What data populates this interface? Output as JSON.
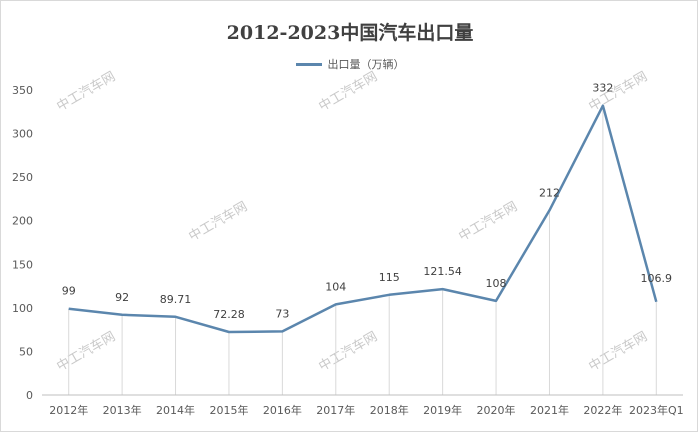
{
  "chart_data": {
    "type": "line",
    "title": "2012-2023中国汽车出口量",
    "categories": [
      "2012年",
      "2013年",
      "2014年",
      "2015年",
      "2016年",
      "2017年",
      "2018年",
      "2019年",
      "2020年",
      "2021年",
      "2022年",
      "2023年Q1"
    ],
    "series": [
      {
        "name": "出口量（万辆）",
        "values": [
          99,
          92,
          89.71,
          72.28,
          73,
          104,
          115,
          121.54,
          108,
          212,
          332,
          106.9
        ],
        "labels": [
          "99",
          "92",
          "89.71",
          "72.28",
          "73",
          "104",
          "115",
          "121.54",
          "108",
          "212",
          "332",
          "106.9"
        ],
        "color": "#5b86ad"
      }
    ],
    "yticks": [
      "0",
      "50",
      "100",
      "150",
      "200",
      "250",
      "300",
      "350"
    ],
    "ylim": [
      0,
      350
    ],
    "grid": false,
    "drop_lines": true,
    "legend_position": "top-center"
  },
  "watermark": "中工汽车网"
}
